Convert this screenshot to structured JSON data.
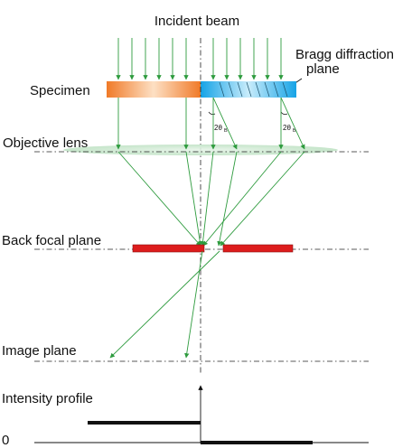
{
  "labels": {
    "incident_beam": "Incident beam",
    "bragg_line1": "Bragg diffraction",
    "bragg_line2": "plane",
    "specimen": "Specimen",
    "objective_lens": "Objective lens",
    "back_focal_plane": "Back focal plane",
    "image_plane": "Image plane",
    "intensity_profile": "Intensity profile",
    "zero": "0",
    "two_theta_left": "2θ",
    "two_theta_left_sub": "B",
    "two_theta_right": "2θ",
    "two_theta_right_sub": "B"
  },
  "colors": {
    "ray": "#2e9b3e",
    "specimen_left_start": "#f07a28",
    "specimen_left_end": "#fde0c4",
    "specimen_right_start": "#16a3e6",
    "specimen_right_end": "#c8ecfb",
    "aperture": "#dd1c1c",
    "lens": "#cfe9d2"
  },
  "intensity_profile": {
    "left_level": "high",
    "right_level": "zero"
  }
}
